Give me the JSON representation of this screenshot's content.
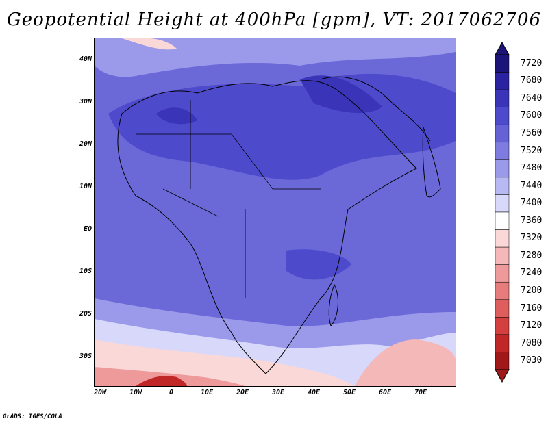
{
  "title": "Geopotential Height at 400hPa [gpm], VT: 2017062706",
  "credit": "GrADS: IGES/COLA",
  "lat_labels": [
    "40N",
    "30N",
    "20N",
    "10N",
    "EQ",
    "10S",
    "20S",
    "30S"
  ],
  "lon_labels": [
    "20W",
    "10W",
    "0",
    "10E",
    "20E",
    "30E",
    "40E",
    "50E",
    "60E",
    "70E"
  ],
  "colorbar": {
    "levels": [
      "7720",
      "7680",
      "7640",
      "7600",
      "7560",
      "7520",
      "7480",
      "7440",
      "7400",
      "7360",
      "7320",
      "7280",
      "7240",
      "7200",
      "7160",
      "7120",
      "7080",
      "7030"
    ],
    "colors": [
      "#1c1478",
      "#2a22a0",
      "#3a34b8",
      "#4e4acc",
      "#6562d6",
      "#7e7ce0",
      "#9a99ea",
      "#b8b8f2",
      "#d8d8fa",
      "#ffffff",
      "#fad8d8",
      "#f4b8b8",
      "#ee9a9a",
      "#e67c7c",
      "#de5e5e",
      "#d44040",
      "#c02828",
      "#a01818"
    ]
  },
  "map": {
    "projection": "lat-lon",
    "lon_range": [
      -22,
      80
    ],
    "lat_range": [
      -37,
      45
    ],
    "field_note_colors": {
      "high": "#4a46c8",
      "low": "#c02828",
      "neutral": "#ffffff"
    }
  }
}
